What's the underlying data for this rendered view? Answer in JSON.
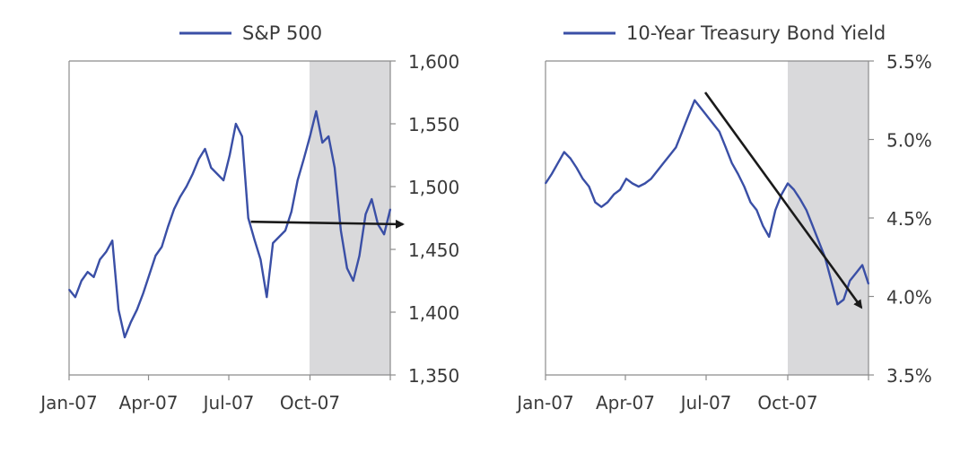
{
  "colors": {
    "series": "#3a4fa6",
    "shade": "#d9d9db",
    "axis": "#8c8c8c",
    "arrow": "#1a1a1a",
    "text": "#3a3a3a"
  },
  "chart_data": [
    {
      "type": "line",
      "title": "",
      "legend": "S&P 500",
      "legend_position": "top-center",
      "xlabel": "",
      "ylabel": "",
      "x_tick_labels": [
        "Jan-07",
        "Apr-07",
        "Jul-07",
        "Oct-07"
      ],
      "y_tick_labels": [
        "1,600",
        "1,550",
        "1,500",
        "1,450",
        "1,400",
        "1,350"
      ],
      "ylim": [
        1350,
        1600
      ],
      "y_axis_side": "right",
      "shaded_region": {
        "from": "2007-10-01",
        "to": "2007-12-31"
      },
      "trend_arrow": {
        "from": {
          "x": "2007-07-26",
          "y": 1472
        },
        "to": {
          "x": "2007-12-31",
          "y": 1470
        }
      },
      "series": [
        {
          "name": "S&P 500",
          "x": [
            "2007-01-01",
            "2007-01-08",
            "2007-01-15",
            "2007-01-22",
            "2007-01-29",
            "2007-02-05",
            "2007-02-12",
            "2007-02-19",
            "2007-02-26",
            "2007-03-05",
            "2007-03-12",
            "2007-03-19",
            "2007-03-26",
            "2007-04-02",
            "2007-04-09",
            "2007-04-16",
            "2007-04-23",
            "2007-04-30",
            "2007-05-07",
            "2007-05-14",
            "2007-05-21",
            "2007-05-28",
            "2007-06-04",
            "2007-06-11",
            "2007-06-18",
            "2007-06-25",
            "2007-07-02",
            "2007-07-09",
            "2007-07-16",
            "2007-07-23",
            "2007-07-30",
            "2007-08-06",
            "2007-08-13",
            "2007-08-20",
            "2007-08-27",
            "2007-09-03",
            "2007-09-10",
            "2007-09-17",
            "2007-09-24",
            "2007-10-01",
            "2007-10-08",
            "2007-10-15",
            "2007-10-22",
            "2007-10-29",
            "2007-11-05",
            "2007-11-12",
            "2007-11-19",
            "2007-11-26",
            "2007-12-03",
            "2007-12-10",
            "2007-12-17",
            "2007-12-24",
            "2007-12-31"
          ],
          "values": [
            1418,
            1412,
            1425,
            1432,
            1428,
            1442,
            1448,
            1457,
            1402,
            1380,
            1392,
            1402,
            1415,
            1430,
            1445,
            1452,
            1468,
            1482,
            1492,
            1500,
            1510,
            1522,
            1530,
            1515,
            1510,
            1505,
            1525,
            1550,
            1540,
            1475,
            1458,
            1442,
            1412,
            1455,
            1460,
            1465,
            1480,
            1505,
            1522,
            1540,
            1560,
            1535,
            1540,
            1515,
            1465,
            1435,
            1425,
            1445,
            1478,
            1490,
            1470,
            1462,
            1482
          ]
        }
      ]
    },
    {
      "type": "line",
      "title": "",
      "legend": "10-Year Treasury Bond Yield",
      "legend_position": "top-center",
      "xlabel": "",
      "ylabel": "",
      "x_tick_labels": [
        "Jan-07",
        "Apr-07",
        "Jul-07",
        "Oct-07"
      ],
      "y_tick_labels": [
        "5.5%",
        "5.0%",
        "4.5%",
        "4.0%",
        "3.5%"
      ],
      "ylim": [
        3.5,
        5.5
      ],
      "y_axis_side": "right",
      "shaded_region": {
        "from": "2007-10-01",
        "to": "2007-12-31"
      },
      "trend_arrow": {
        "from": {
          "x": "2007-06-30",
          "y": 5.3
        },
        "to": {
          "x": "2007-12-31",
          "y": 3.93
        }
      },
      "series": [
        {
          "name": "10-Year Treasury Bond Yield",
          "x": [
            "2007-01-01",
            "2007-01-08",
            "2007-01-15",
            "2007-01-22",
            "2007-01-29",
            "2007-02-05",
            "2007-02-12",
            "2007-02-19",
            "2007-02-26",
            "2007-03-05",
            "2007-03-12",
            "2007-03-19",
            "2007-03-26",
            "2007-04-02",
            "2007-04-09",
            "2007-04-16",
            "2007-04-23",
            "2007-04-30",
            "2007-05-07",
            "2007-05-14",
            "2007-05-21",
            "2007-05-28",
            "2007-06-04",
            "2007-06-11",
            "2007-06-18",
            "2007-06-25",
            "2007-07-02",
            "2007-07-09",
            "2007-07-16",
            "2007-07-23",
            "2007-07-30",
            "2007-08-06",
            "2007-08-13",
            "2007-08-20",
            "2007-08-27",
            "2007-09-03",
            "2007-09-10",
            "2007-09-17",
            "2007-09-24",
            "2007-10-01",
            "2007-10-08",
            "2007-10-15",
            "2007-10-22",
            "2007-10-29",
            "2007-11-05",
            "2007-11-12",
            "2007-11-19",
            "2007-11-26",
            "2007-12-03",
            "2007-12-10",
            "2007-12-17",
            "2007-12-24",
            "2007-12-31"
          ],
          "values": [
            4.72,
            4.78,
            4.85,
            4.92,
            4.88,
            4.82,
            4.75,
            4.7,
            4.6,
            4.57,
            4.6,
            4.65,
            4.68,
            4.75,
            4.72,
            4.7,
            4.72,
            4.75,
            4.8,
            4.85,
            4.9,
            4.95,
            5.05,
            5.15,
            5.25,
            5.2,
            5.15,
            5.1,
            5.05,
            4.95,
            4.85,
            4.78,
            4.7,
            4.6,
            4.55,
            4.45,
            4.38,
            4.55,
            4.65,
            4.72,
            4.68,
            4.62,
            4.55,
            4.45,
            4.35,
            4.25,
            4.1,
            3.95,
            3.98,
            4.1,
            4.15,
            4.2,
            4.08
          ]
        }
      ]
    }
  ]
}
